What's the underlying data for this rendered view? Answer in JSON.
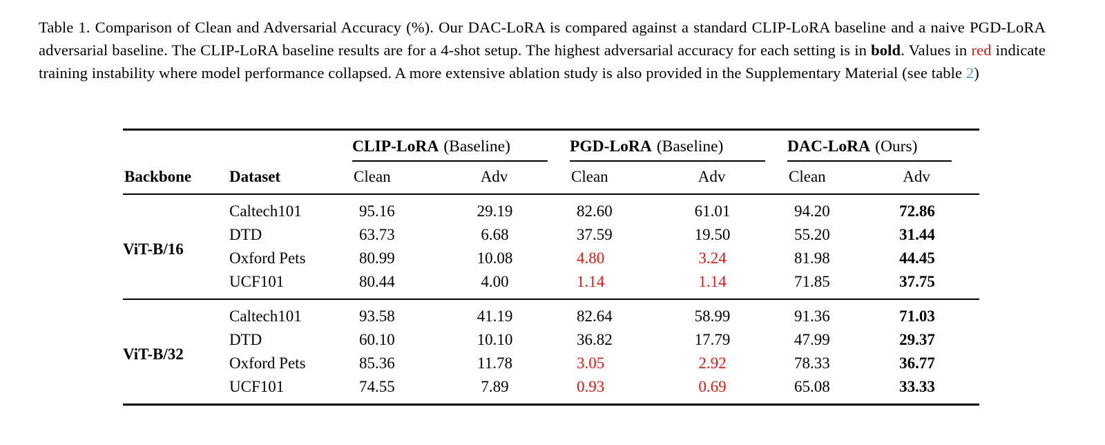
{
  "colors": {
    "red": "#dc1a16",
    "link_blue": "#5b9bc4",
    "text": "#000000",
    "background": "#ffffff"
  },
  "caption": {
    "label": "Table 1.",
    "parts": [
      {
        "text": "Table 1. Comparison of Clean and Adversarial Accuracy (%). Our DAC-LoRA is compared against a standard CLIP-LoRA baseline and a naive PGD-LoRA adversarial baseline. The CLIP-LoRA baseline results are for a 4-shot setup. The highest adversarial accuracy for each setting is in "
      },
      {
        "text": "bold",
        "style": "bold"
      },
      {
        "text": ". Values in "
      },
      {
        "text": "red",
        "style": "red"
      },
      {
        "text": " indicate training instability where model performance collapsed. A more extensive ablation study is also provided in the Supplementary Material (see table "
      },
      {
        "text": "2",
        "style": "link"
      },
      {
        "text": ")"
      }
    ]
  },
  "table": {
    "groups": [
      {
        "name": "CLIP-LoRA",
        "qualifier": "(Baseline)"
      },
      {
        "name": "PGD-LoRA",
        "qualifier": "(Baseline)"
      },
      {
        "name": "DAC-LoRA",
        "qualifier": "(Ours)"
      }
    ],
    "headers": {
      "backbone": "Backbone",
      "dataset": "Dataset",
      "clean": "Clean",
      "adv": "Adv"
    },
    "blocks": [
      {
        "backbone": "ViT-B/16",
        "rows": [
          {
            "dataset": "Caltech101",
            "cells": [
              {
                "v": "95.16"
              },
              {
                "v": "29.19"
              },
              {
                "v": "82.60"
              },
              {
                "v": "61.01"
              },
              {
                "v": "94.20"
              },
              {
                "v": "72.86",
                "bold": true
              }
            ]
          },
          {
            "dataset": "DTD",
            "cells": [
              {
                "v": "63.73"
              },
              {
                "v": "6.68"
              },
              {
                "v": "37.59"
              },
              {
                "v": "19.50"
              },
              {
                "v": "55.20"
              },
              {
                "v": "31.44",
                "bold": true
              }
            ]
          },
          {
            "dataset": "Oxford Pets",
            "cells": [
              {
                "v": "80.99"
              },
              {
                "v": "10.08"
              },
              {
                "v": "4.80",
                "red": true
              },
              {
                "v": "3.24",
                "red": true
              },
              {
                "v": "81.98"
              },
              {
                "v": "44.45",
                "bold": true
              }
            ]
          },
          {
            "dataset": "UCF101",
            "cells": [
              {
                "v": "80.44"
              },
              {
                "v": "4.00"
              },
              {
                "v": "1.14",
                "red": true
              },
              {
                "v": "1.14",
                "red": true
              },
              {
                "v": "71.85"
              },
              {
                "v": "37.75",
                "bold": true
              }
            ]
          }
        ]
      },
      {
        "backbone": "ViT-B/32",
        "rows": [
          {
            "dataset": "Caltech101",
            "cells": [
              {
                "v": "93.58"
              },
              {
                "v": "41.19"
              },
              {
                "v": "82.64"
              },
              {
                "v": "58.99"
              },
              {
                "v": "91.36"
              },
              {
                "v": "71.03",
                "bold": true
              }
            ]
          },
          {
            "dataset": "DTD",
            "cells": [
              {
                "v": "60.10"
              },
              {
                "v": "10.10"
              },
              {
                "v": "36.82"
              },
              {
                "v": "17.79"
              },
              {
                "v": "47.99"
              },
              {
                "v": "29.37",
                "bold": true
              }
            ]
          },
          {
            "dataset": "Oxford Pets",
            "cells": [
              {
                "v": "85.36"
              },
              {
                "v": "11.78"
              },
              {
                "v": "3.05",
                "red": true
              },
              {
                "v": "2.92",
                "red": true
              },
              {
                "v": "78.33"
              },
              {
                "v": "36.77",
                "bold": true
              }
            ]
          },
          {
            "dataset": "UCF101",
            "cells": [
              {
                "v": "74.55"
              },
              {
                "v": "7.89"
              },
              {
                "v": "0.93",
                "red": true
              },
              {
                "v": "0.69",
                "red": true
              },
              {
                "v": "65.08"
              },
              {
                "v": "33.33",
                "bold": true
              }
            ]
          }
        ]
      }
    ]
  }
}
